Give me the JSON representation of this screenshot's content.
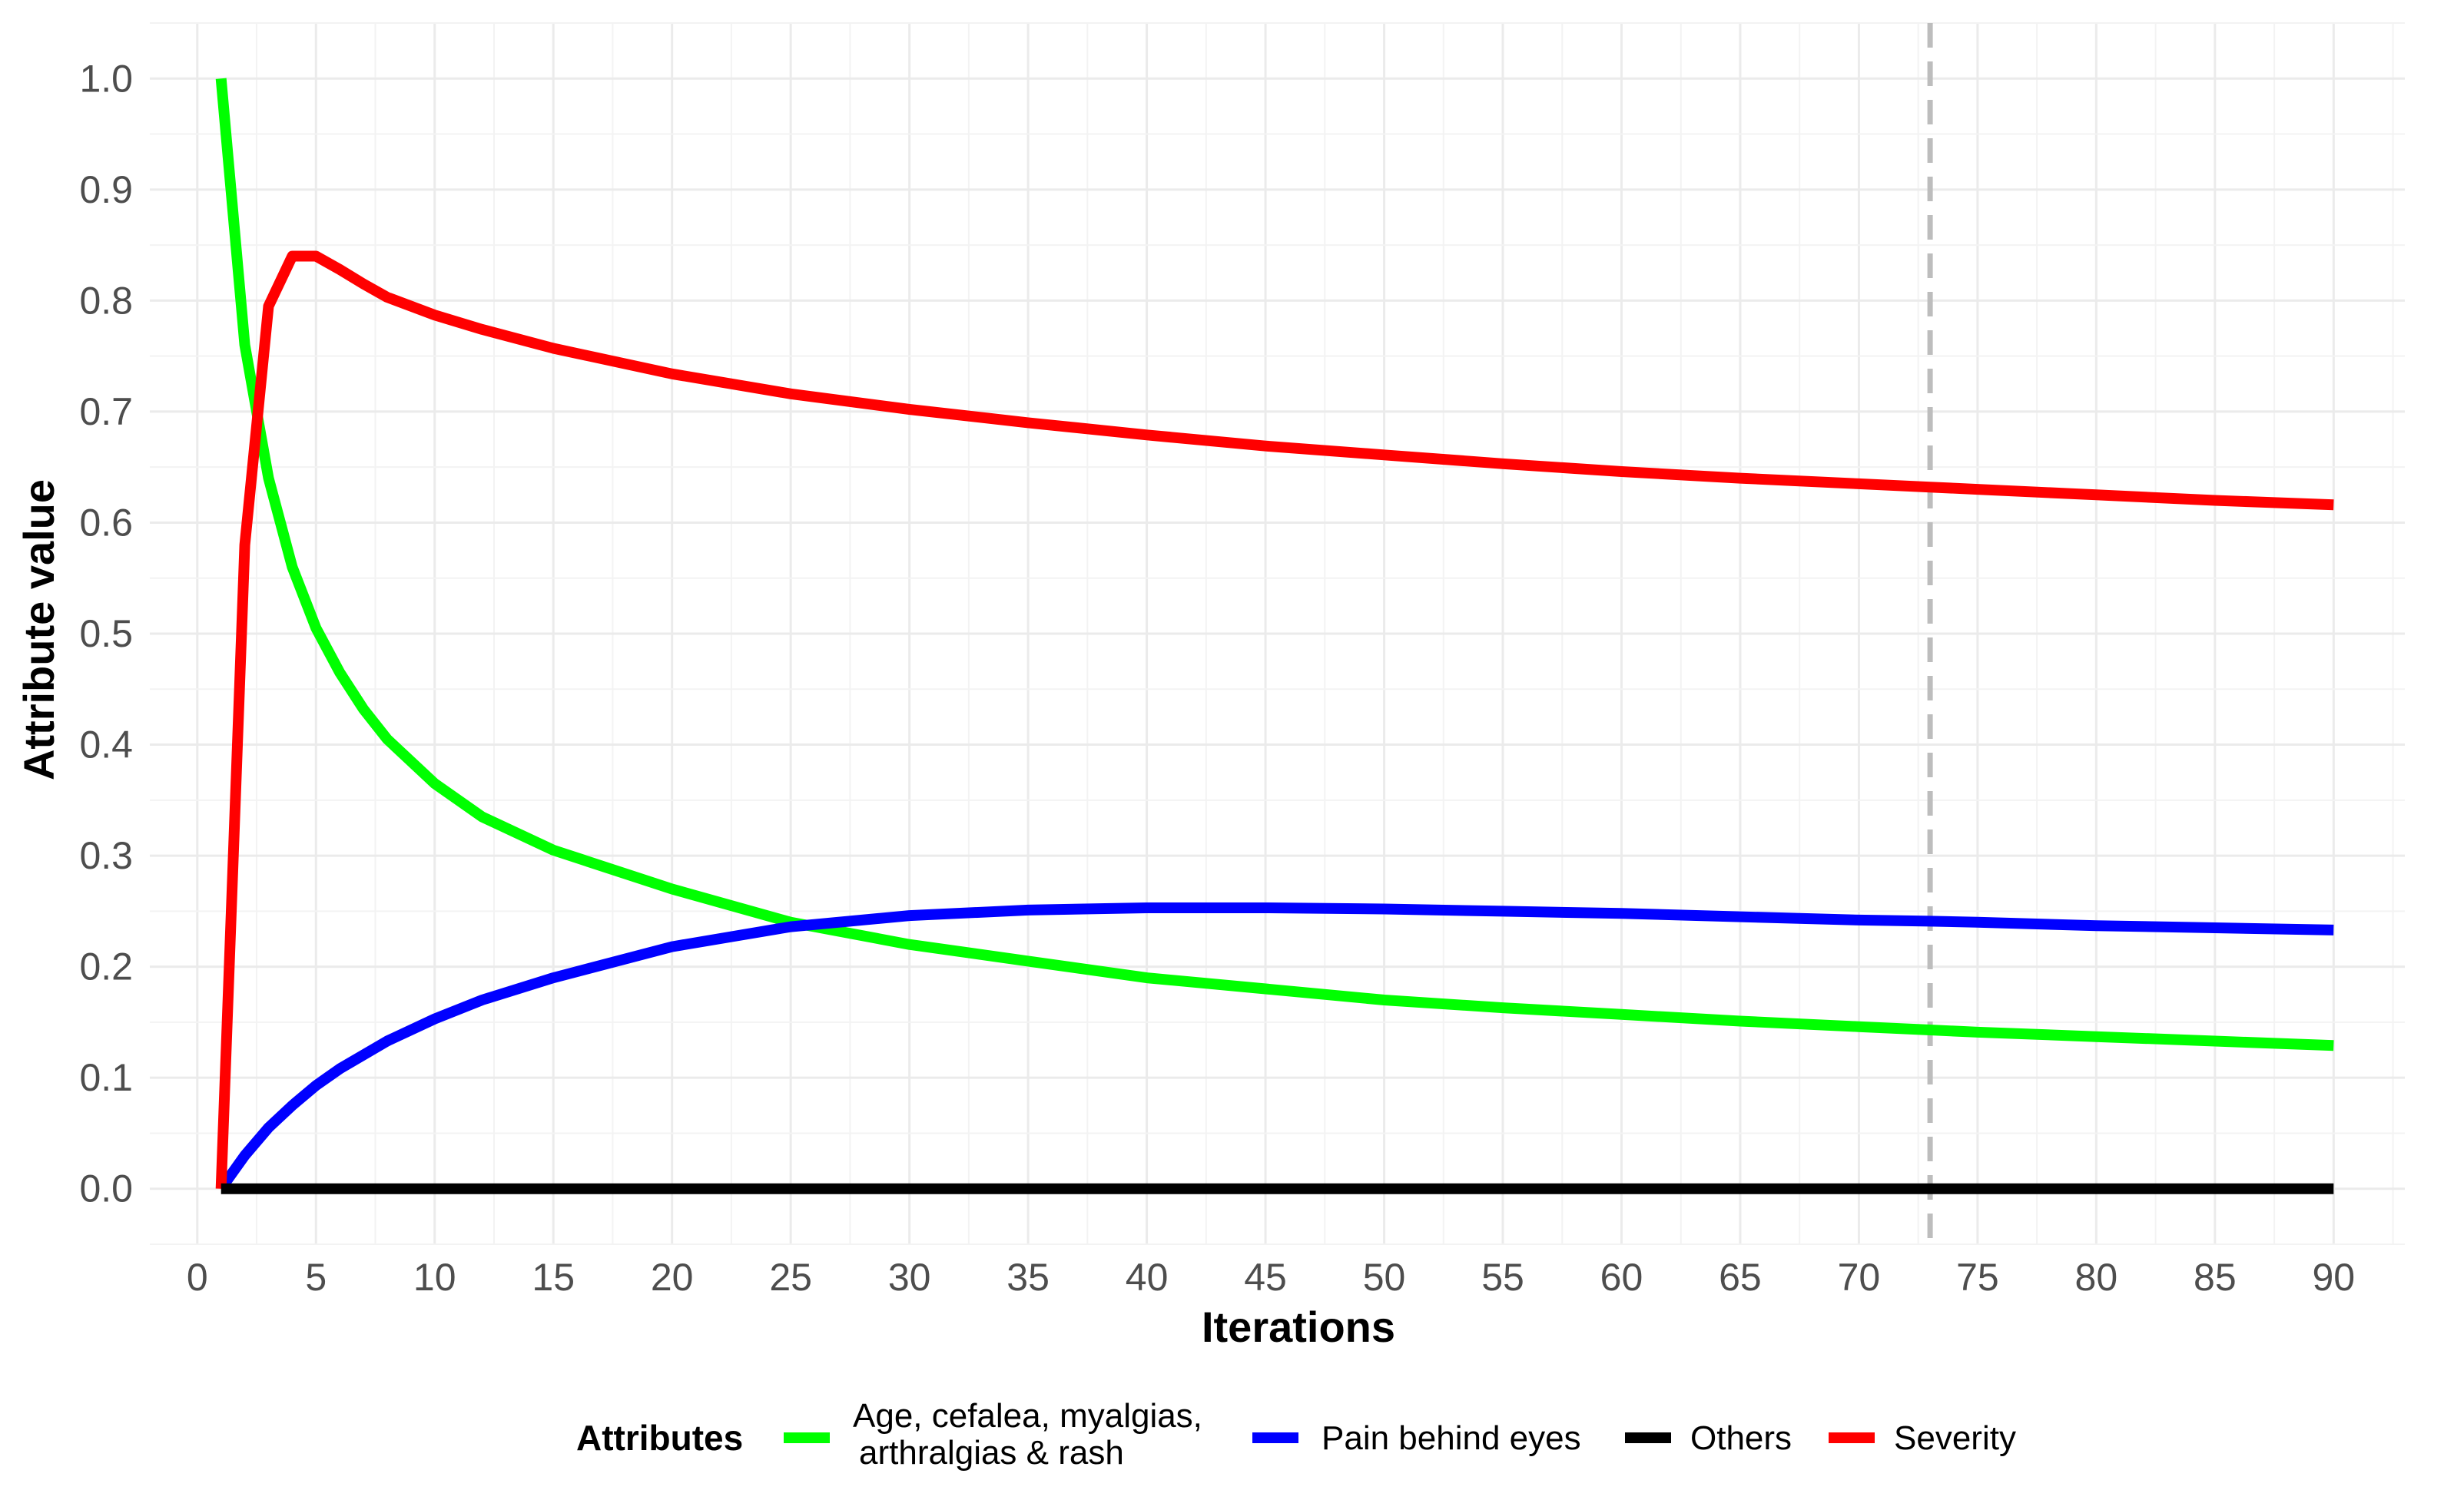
{
  "chart_data": {
    "type": "line",
    "title": "",
    "xlabel": "Iterations",
    "ylabel": "Attribute value",
    "xlim": [
      -2,
      93
    ],
    "ylim": [
      -0.05,
      1.05
    ],
    "x_ticks": [
      0,
      5,
      10,
      15,
      20,
      25,
      30,
      35,
      40,
      45,
      50,
      55,
      60,
      65,
      70,
      75,
      80,
      85,
      90
    ],
    "x_tick_labels": [
      "0",
      "5",
      "10",
      "15",
      "20",
      "25",
      "30",
      "35",
      "40",
      "45",
      "50",
      "55",
      "60",
      "65",
      "70",
      "75",
      "80",
      "85",
      "90"
    ],
    "y_ticks": [
      0.0,
      0.1,
      0.2,
      0.3,
      0.4,
      0.5,
      0.6,
      0.7,
      0.8,
      0.9,
      1.0
    ],
    "y_tick_labels": [
      "0.0",
      "0.1",
      "0.2",
      "0.3",
      "0.4",
      "0.5",
      "0.6",
      "0.7",
      "0.8",
      "0.9",
      "1.0"
    ],
    "grid": true,
    "vline": {
      "x": 73,
      "color": "#bdbdbd",
      "style": "dashed"
    },
    "legend": {
      "title": "Attributes",
      "position": "bottom"
    },
    "series": [
      {
        "name": "Age, cefalea, myalgias, arthralgias & rash",
        "legend_lines": [
          "Age, cefalea, myalgias,",
          "arthralgias & rash"
        ],
        "color": "#00ff00",
        "points": [
          [
            1,
            1.0
          ],
          [
            2,
            0.76
          ],
          [
            3,
            0.64
          ],
          [
            4,
            0.56
          ],
          [
            5,
            0.505
          ],
          [
            6,
            0.465
          ],
          [
            7,
            0.432
          ],
          [
            8,
            0.405
          ],
          [
            10,
            0.365
          ],
          [
            12,
            0.335
          ],
          [
            15,
            0.305
          ],
          [
            20,
            0.27
          ],
          [
            25,
            0.24
          ],
          [
            30,
            0.22
          ],
          [
            35,
            0.205
          ],
          [
            40,
            0.19
          ],
          [
            45,
            0.18
          ],
          [
            50,
            0.17
          ],
          [
            55,
            0.163
          ],
          [
            60,
            0.157
          ],
          [
            65,
            0.151
          ],
          [
            70,
            0.146
          ],
          [
            73,
            0.143
          ],
          [
            75,
            0.141
          ],
          [
            80,
            0.137
          ],
          [
            85,
            0.133
          ],
          [
            90,
            0.129
          ]
        ]
      },
      {
        "name": "Pain behind eyes",
        "legend_lines": [
          "Pain behind eyes"
        ],
        "color": "#0000ff",
        "points": [
          [
            1,
            0.0
          ],
          [
            2,
            0.03
          ],
          [
            3,
            0.055
          ],
          [
            4,
            0.075
          ],
          [
            5,
            0.093
          ],
          [
            6,
            0.108
          ],
          [
            8,
            0.133
          ],
          [
            10,
            0.153
          ],
          [
            12,
            0.17
          ],
          [
            15,
            0.19
          ],
          [
            20,
            0.218
          ],
          [
            25,
            0.236
          ],
          [
            30,
            0.246
          ],
          [
            35,
            0.251
          ],
          [
            40,
            0.253
          ],
          [
            45,
            0.253
          ],
          [
            50,
            0.252
          ],
          [
            55,
            0.25
          ],
          [
            60,
            0.248
          ],
          [
            65,
            0.245
          ],
          [
            70,
            0.242
          ],
          [
            73,
            0.241
          ],
          [
            75,
            0.24
          ],
          [
            80,
            0.237
          ],
          [
            85,
            0.235
          ],
          [
            90,
            0.233
          ]
        ]
      },
      {
        "name": "Others",
        "legend_lines": [
          "Others"
        ],
        "color": "#000000",
        "points": [
          [
            1,
            0.0
          ],
          [
            90,
            0.0
          ]
        ]
      },
      {
        "name": "Severity",
        "legend_lines": [
          "Severity"
        ],
        "color": "#ff0000",
        "points": [
          [
            1,
            0.0
          ],
          [
            2,
            0.58
          ],
          [
            3,
            0.795
          ],
          [
            4,
            0.84
          ],
          [
            5,
            0.84
          ],
          [
            6,
            0.828
          ],
          [
            7,
            0.815
          ],
          [
            8,
            0.803
          ],
          [
            10,
            0.787
          ],
          [
            12,
            0.774
          ],
          [
            15,
            0.757
          ],
          [
            20,
            0.734
          ],
          [
            25,
            0.716
          ],
          [
            30,
            0.702
          ],
          [
            35,
            0.69
          ],
          [
            40,
            0.679
          ],
          [
            45,
            0.669
          ],
          [
            50,
            0.661
          ],
          [
            55,
            0.653
          ],
          [
            60,
            0.646
          ],
          [
            65,
            0.64
          ],
          [
            70,
            0.635
          ],
          [
            73,
            0.632
          ],
          [
            75,
            0.63
          ],
          [
            80,
            0.625
          ],
          [
            85,
            0.62
          ],
          [
            90,
            0.616
          ]
        ]
      }
    ]
  }
}
